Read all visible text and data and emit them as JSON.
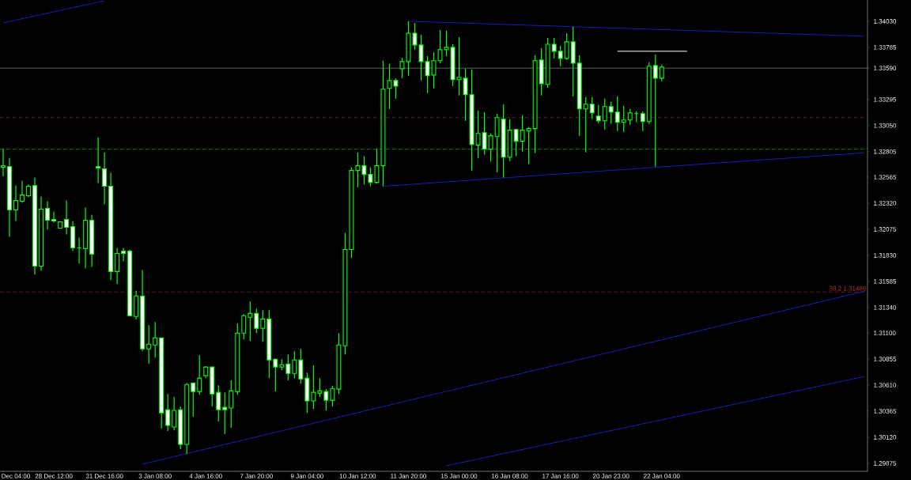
{
  "chart_data": {
    "type": "candlestick",
    "color": "#00ff00",
    "categories": [
      null,
      null,
      "Dec 04:00",
      null,
      null,
      null,
      null,
      null,
      "28 Dec 12:00",
      null,
      null,
      null,
      null,
      null,
      null,
      null,
      "31 Dec 16:00",
      null,
      null,
      null,
      null,
      null,
      null,
      null,
      "3 Jan 08:00",
      null,
      null,
      null,
      null,
      null,
      null,
      null,
      "4 Jan 16:00",
      null,
      null,
      null,
      null,
      null,
      null,
      null,
      "7 Jan 20:00",
      null,
      null,
      null,
      null,
      null,
      null,
      null,
      "9 Jan 04:00",
      null,
      null,
      null,
      null,
      null,
      null,
      null,
      "10 Jan 12:00",
      null,
      null,
      null,
      null,
      null,
      null,
      null,
      "11 Jan 20:00",
      null,
      null,
      null,
      null,
      null,
      null,
      null,
      "15 Jan 00:00",
      null,
      null,
      null,
      null,
      null,
      null,
      null,
      "16 Jan 08:00",
      null,
      null,
      null,
      null,
      null,
      null,
      null,
      "17 Jan 16:00",
      null,
      null,
      null,
      null,
      null,
      null,
      null,
      "20 Jan 23:00",
      null,
      null,
      null,
      null,
      null,
      null,
      null,
      "22 Jan 04:00",
      null,
      null,
      null,
      null,
      null,
      null,
      null,
      null,
      null,
      null,
      null,
      null,
      null,
      null,
      null,
      null,
      null,
      null,
      null,
      null,
      null,
      null,
      null,
      null,
      null,
      null,
      null,
      null,
      null,
      null,
      null,
      null
    ],
    "ohlc": [
      [
        1.32657,
        1.32835,
        1.32575,
        1.32672
      ],
      [
        1.32664,
        1.32746,
        1.32004,
        1.32256
      ],
      [
        1.32256,
        1.32486,
        1.32152,
        1.32345
      ],
      [
        1.32338,
        1.32531,
        1.32323,
        1.32397
      ],
      [
        1.3239,
        1.32494,
        1.32375,
        1.32479
      ],
      [
        1.32486,
        1.32561,
        1.31648,
        1.31729
      ],
      [
        1.31729,
        1.32382,
        1.31685,
        1.32264
      ],
      [
        1.32271,
        1.32338,
        1.32071,
        1.3216
      ],
      [
        1.32167,
        1.32241,
        1.32138,
        1.32152
      ],
      [
        1.32086,
        1.32152,
        1.32086,
        1.32145
      ],
      [
        1.32167,
        1.32345,
        1.32026,
        1.32093
      ],
      [
        1.321,
        1.32152,
        1.3187,
        1.319
      ],
      [
        1.319,
        1.31997,
        1.31752,
        1.319
      ],
      [
        1.31893,
        1.32279,
        1.31707,
        1.3216
      ],
      [
        1.3216,
        1.32212,
        1.31722,
        1.31841
      ],
      [
        1.32664,
        1.32939,
        1.32509,
        1.3265
      ],
      [
        1.32642,
        1.32798,
        1.32308,
        1.32479
      ],
      [
        1.32479,
        1.32605,
        1.31596,
        1.31678
      ],
      [
        1.31678,
        1.319,
        1.31559,
        1.31848
      ],
      [
        1.3187,
        1.319,
        1.31774,
        1.31848
      ],
      [
        1.3187,
        1.31885,
        1.31255,
        1.31262
      ],
      [
        1.31255,
        1.31499,
        1.31225,
        1.31448
      ],
      [
        1.31448,
        1.31692,
        1.30928,
        1.3095
      ],
      [
        1.3095,
        1.31173,
        1.30809,
        1.30995
      ],
      [
        1.30987,
        1.31203,
        1.30869,
        1.31054
      ],
      [
        1.31054,
        1.31054,
        1.30201,
        1.30349
      ],
      [
        1.30379,
        1.30527,
        1.30179,
        1.30231
      ],
      [
        1.30216,
        1.30498,
        1.30186,
        1.30372
      ],
      [
        1.30379,
        1.30409,
        1.30008,
        1.30053
      ],
      [
        1.30053,
        1.30631,
        1.29964,
        1.30616
      ],
      [
        1.30631,
        1.30631,
        1.30312,
        1.3055
      ],
      [
        1.3055,
        1.30891,
        1.3052,
        1.30676
      ],
      [
        1.30698,
        1.30787,
        1.30676,
        1.3078
      ],
      [
        1.3078,
        1.3078,
        1.30409,
        1.30527
      ],
      [
        1.30542,
        1.30609,
        1.30268,
        1.30379
      ],
      [
        1.30401,
        1.30542,
        1.30149,
        1.30379
      ],
      [
        1.30394,
        1.30654,
        1.30208,
        1.30557
      ],
      [
        1.3055,
        1.31188,
        1.3052,
        1.31099
      ],
      [
        1.31099,
        1.31277,
        1.31039,
        1.31262
      ],
      [
        1.31247,
        1.31396,
        1.31025,
        1.31284
      ],
      [
        1.31284,
        1.31329,
        1.31099,
        1.31143
      ],
      [
        1.31143,
        1.31314,
        1.31017,
        1.31232
      ],
      [
        1.31232,
        1.31314,
        1.30676,
        1.30846
      ],
      [
        1.30854,
        1.30861,
        1.3055,
        1.3078
      ],
      [
        1.3078,
        1.30854,
        1.3075,
        1.30802
      ],
      [
        1.30809,
        1.30898,
        1.30654,
        1.3072
      ],
      [
        1.3072,
        1.30928,
        1.30676,
        1.30846
      ],
      [
        1.30846,
        1.3095,
        1.30624,
        1.30668
      ],
      [
        1.30676,
        1.30728,
        1.30349,
        1.30461
      ],
      [
        1.30461,
        1.30795,
        1.30386,
        1.30542
      ],
      [
        1.30535,
        1.30676,
        1.30498,
        1.30557
      ],
      [
        1.3055,
        1.30572,
        1.30372,
        1.30468
      ],
      [
        1.30468,
        1.30602,
        1.30409,
        1.30579
      ],
      [
        1.30572,
        1.31099,
        1.30527,
        1.30987
      ],
      [
        1.3098,
        1.32041,
        1.30898,
        1.31885
      ],
      [
        1.31885,
        1.32657,
        1.31804,
        1.32627
      ],
      [
        1.32627,
        1.32798,
        1.32471,
        1.32672
      ],
      [
        1.32672,
        1.32761,
        1.32494,
        1.3259
      ],
      [
        1.3259,
        1.32657,
        1.32479,
        1.32516
      ],
      [
        1.32516,
        1.32835,
        1.32501,
        1.32672
      ],
      [
        1.32672,
        1.33659,
        1.32479,
        1.33392
      ],
      [
        1.33399,
        1.33629,
        1.33206,
        1.33473
      ],
      [
        1.33473,
        1.33495,
        1.33303,
        1.33421
      ],
      [
        1.33584,
        1.33688,
        1.33495,
        1.33651
      ],
      [
        1.33651,
        1.3403,
        1.33518,
        1.33918
      ],
      [
        1.33918,
        1.34015,
        1.33763,
        1.33807
      ],
      [
        1.33807,
        1.33904,
        1.33473,
        1.33651
      ],
      [
        1.33651,
        1.33703,
        1.33354,
        1.33518
      ],
      [
        1.33525,
        1.3374,
        1.33399,
        1.33659
      ],
      [
        1.33659,
        1.33948,
        1.33636,
        1.33763
      ],
      [
        1.33763,
        1.33941,
        1.33703,
        1.33785
      ],
      [
        1.33785,
        1.33814,
        1.33421,
        1.33481
      ],
      [
        1.33481,
        1.33881,
        1.33332,
        1.33503
      ],
      [
        1.33495,
        1.33584,
        1.33095,
        1.3334
      ],
      [
        1.3334,
        1.33577,
        1.32627,
        1.32872
      ],
      [
        1.32865,
        1.33191,
        1.32746,
        1.32976
      ],
      [
        1.32983,
        1.33176,
        1.32776,
        1.32828
      ],
      [
        1.32828,
        1.32976,
        1.32709,
        1.32954
      ],
      [
        1.32946,
        1.33162,
        1.32612,
        1.33124
      ],
      [
        1.3311,
        1.33251,
        1.32561,
        1.32753
      ],
      [
        1.32753,
        1.3311,
        1.32716,
        1.33006
      ],
      [
        1.33013,
        1.33021,
        1.32761,
        1.32902
      ],
      [
        1.32902,
        1.33147,
        1.32805,
        1.33006
      ],
      [
        1.32998,
        1.33035,
        1.32687,
        1.33021
      ],
      [
        1.33021,
        1.33711,
        1.32791,
        1.33659
      ],
      [
        1.33666,
        1.33777,
        1.33332,
        1.33443
      ],
      [
        1.33436,
        1.33874,
        1.33406,
        1.33814
      ],
      [
        1.33814,
        1.33874,
        1.33681,
        1.33748
      ],
      [
        1.33748,
        1.338,
        1.33607,
        1.33681
      ],
      [
        1.33681,
        1.33918,
        1.33666,
        1.33837
      ],
      [
        1.33837,
        1.33978,
        1.33325,
        1.33636
      ],
      [
        1.33636,
        1.33711,
        1.32954,
        1.33206
      ],
      [
        1.33206,
        1.33317,
        1.32798,
        1.33251
      ],
      [
        1.33251,
        1.33317,
        1.3311,
        1.33169
      ],
      [
        1.33139,
        1.33243,
        1.33072,
        1.33095
      ],
      [
        1.33095,
        1.33303,
        1.33013,
        1.33228
      ],
      [
        1.33228,
        1.33273,
        1.33065,
        1.33176
      ],
      [
        1.33176,
        1.33325,
        1.32998,
        1.3308
      ],
      [
        1.3308,
        1.33236,
        1.32991,
        1.33102
      ],
      [
        1.33102,
        1.33206,
        1.33058,
        1.33169
      ],
      [
        1.33162,
        1.33184,
        1.3308,
        1.33162
      ],
      [
        1.33162,
        1.33184,
        1.32998,
        1.33087
      ],
      [
        1.33087,
        1.33644,
        1.33065,
        1.33607
      ],
      [
        1.33614,
        1.33718,
        1.32664,
        1.33495
      ],
      [
        1.33495,
        1.33622,
        1.33466,
        1.33599
      ],
      null,
      null,
      null,
      null,
      null,
      null,
      null,
      null,
      null,
      null,
      null,
      null,
      null,
      null,
      null,
      null,
      null,
      null,
      null,
      null,
      null,
      null,
      null,
      null,
      null,
      null,
      null,
      null,
      null,
      null,
      null,
      null
    ],
    "series": [
      {
        "type": "line",
        "color": "#1c1cb4",
        "values": [
          null,
          null,
          null,
          null,
          null,
          null,
          null,
          null,
          null,
          null,
          null,
          null,
          null,
          null,
          null,
          null,
          null,
          null,
          null,
          null,
          null,
          null,
          null,
          null,
          null,
          null,
          null,
          null,
          null,
          null,
          null,
          null,
          null,
          null,
          null,
          null,
          null,
          null,
          null,
          null,
          null,
          null,
          null,
          null,
          null,
          null,
          null,
          null,
          null,
          null,
          null,
          null,
          null,
          null,
          null,
          null,
          null,
          null,
          null,
          null,
          null,
          null,
          null,
          null,
          1.3403,
          null,
          null,
          null,
          null,
          null,
          null,
          null,
          null,
          null,
          null,
          null,
          null,
          null,
          null,
          null,
          null,
          null,
          null,
          null,
          null,
          null,
          null,
          null,
          null,
          null,
          null,
          null,
          null,
          null,
          null,
          null,
          null,
          null,
          null,
          null,
          null,
          null,
          null,
          null,
          null,
          null,
          null,
          null,
          null,
          null,
          null,
          null,
          null,
          null,
          null,
          null,
          null,
          null,
          null,
          null,
          null,
          null,
          null,
          null,
          null,
          null,
          null,
          null,
          null,
          null,
          null,
          null,
          null,
          null,
          null,
          null,
          1.33889
        ]
      },
      {
        "type": "line",
        "color": "#1c1cb4",
        "values": [
          null,
          null,
          null,
          null,
          null,
          null,
          null,
          null,
          null,
          null,
          null,
          null,
          null,
          null,
          null,
          null,
          null,
          null,
          null,
          null,
          null,
          null,
          null,
          null,
          null,
          null,
          null,
          null,
          null,
          null,
          null,
          null,
          null,
          null,
          null,
          null,
          null,
          null,
          null,
          null,
          null,
          null,
          null,
          null,
          null,
          null,
          null,
          null,
          null,
          null,
          null,
          null,
          null,
          null,
          null,
          null,
          null,
          null,
          null,
          null,
          1.32479,
          null,
          null,
          null,
          null,
          null,
          null,
          null,
          null,
          null,
          null,
          null,
          null,
          null,
          null,
          null,
          null,
          null,
          null,
          null,
          null,
          null,
          null,
          null,
          null,
          null,
          null,
          null,
          null,
          null,
          null,
          null,
          null,
          null,
          null,
          null,
          null,
          null,
          null,
          null,
          null,
          null,
          null,
          null,
          null,
          null,
          null,
          null,
          null,
          null,
          null,
          null,
          null,
          null,
          null,
          null,
          null,
          null,
          null,
          null,
          null,
          null,
          null,
          null,
          null,
          null,
          null,
          null,
          null,
          null,
          null,
          null,
          null,
          null,
          null,
          null,
          1.32794
        ]
      },
      {
        "type": "line",
        "color": "#1c1cb4",
        "values": [
          null,
          null,
          null,
          null,
          null,
          null,
          null,
          null,
          null,
          null,
          null,
          null,
          null,
          null,
          null,
          null,
          null,
          null,
          null,
          null,
          null,
          null,
          1.29867,
          null,
          null,
          null,
          null,
          null,
          null,
          null,
          null,
          null,
          null,
          null,
          null,
          null,
          null,
          null,
          null,
          null,
          null,
          null,
          null,
          null,
          null,
          null,
          null,
          null,
          null,
          null,
          null,
          null,
          null,
          null,
          null,
          null,
          null,
          null,
          null,
          null,
          null,
          null,
          null,
          null,
          null,
          null,
          null,
          null,
          null,
          null,
          null,
          null,
          null,
          null,
          null,
          null,
          null,
          null,
          null,
          null,
          null,
          null,
          null,
          null,
          null,
          null,
          null,
          null,
          null,
          null,
          null,
          null,
          null,
          null,
          null,
          null,
          null,
          null,
          null,
          null,
          null,
          null,
          null,
          null,
          null,
          null,
          null,
          null,
          null,
          null,
          null,
          null,
          null,
          null,
          null,
          null,
          null,
          null,
          null,
          null,
          null,
          null,
          null,
          null,
          null,
          null,
          null,
          null,
          null,
          null,
          null,
          null,
          null,
          null,
          null,
          null,
          1.31492
        ]
      },
      {
        "type": "line",
        "color": "#1c1cb4",
        "values": [
          null,
          null,
          null,
          null,
          null,
          null,
          null,
          null,
          null,
          null,
          null,
          null,
          null,
          null,
          null,
          null,
          null,
          null,
          null,
          null,
          null,
          null,
          null,
          null,
          null,
          null,
          null,
          null,
          null,
          null,
          null,
          null,
          null,
          null,
          null,
          null,
          null,
          null,
          null,
          null,
          null,
          null,
          null,
          null,
          null,
          null,
          null,
          null,
          null,
          null,
          null,
          null,
          null,
          null,
          null,
          null,
          null,
          null,
          null,
          null,
          null,
          null,
          null,
          null,
          null,
          null,
          null,
          null,
          null,
          null,
          1.29852,
          null,
          null,
          null,
          null,
          null,
          null,
          null,
          null,
          null,
          null,
          null,
          null,
          null,
          null,
          null,
          null,
          null,
          null,
          null,
          null,
          null,
          null,
          null,
          null,
          null,
          null,
          null,
          null,
          null,
          null,
          null,
          null,
          null,
          null,
          null,
          null,
          null,
          null,
          null,
          null,
          null,
          null,
          null,
          null,
          null,
          null,
          null,
          null,
          null,
          null,
          null,
          null,
          null,
          null,
          null,
          null,
          null,
          null,
          null,
          null,
          null,
          null,
          null,
          null,
          null,
          1.30691
        ]
      },
      {
        "type": "line",
        "color": "#1c1cb4",
        "values": [
          1.34015,
          null,
          null,
          null,
          null,
          null,
          null,
          null,
          null,
          null,
          null,
          null,
          null,
          null,
          null,
          null,
          1.34223,
          null,
          null,
          null,
          null,
          null,
          null,
          null,
          null,
          null,
          null,
          null,
          null,
          null,
          null,
          null,
          null,
          null,
          null,
          null,
          null,
          null,
          null,
          null,
          null,
          null,
          null,
          null,
          null,
          null,
          null,
          null,
          null,
          null,
          null,
          null,
          null,
          null,
          null,
          null,
          null,
          null,
          null,
          null,
          null,
          null,
          null,
          null,
          null,
          null,
          null,
          null,
          null,
          null,
          null,
          null,
          null,
          null,
          null,
          null,
          null,
          null,
          null,
          null,
          null,
          null,
          null,
          null,
          null,
          null,
          null,
          null,
          null,
          null,
          null,
          null,
          null,
          null,
          null,
          null,
          null,
          null,
          null,
          null,
          null,
          null,
          null,
          null,
          null,
          null,
          null,
          null,
          null,
          null,
          null,
          null,
          null,
          null,
          null,
          null,
          null,
          null,
          null,
          null,
          null,
          null,
          null,
          null,
          null,
          null,
          null,
          null,
          null,
          null,
          null,
          null,
          null,
          null,
          null,
          null,
          null
        ]
      },
      {
        "type": "line",
        "color": "#ffffff",
        "values": [
          null,
          null,
          null,
          null,
          null,
          null,
          null,
          null,
          null,
          null,
          null,
          null,
          null,
          null,
          null,
          null,
          null,
          null,
          null,
          null,
          null,
          null,
          null,
          null,
          null,
          null,
          null,
          null,
          null,
          null,
          null,
          null,
          null,
          null,
          null,
          null,
          null,
          null,
          null,
          null,
          null,
          null,
          null,
          null,
          null,
          null,
          null,
          null,
          null,
          null,
          null,
          null,
          null,
          null,
          null,
          null,
          null,
          null,
          null,
          null,
          null,
          null,
          null,
          null,
          null,
          null,
          null,
          null,
          null,
          null,
          null,
          null,
          null,
          null,
          null,
          null,
          null,
          null,
          null,
          null,
          null,
          null,
          null,
          null,
          null,
          null,
          null,
          null,
          null,
          null,
          null,
          null,
          null,
          null,
          null,
          null,
          null,
          1.33748,
          null,
          null,
          null,
          null,
          null,
          null,
          null,
          null,
          null,
          null,
          1.33748,
          null,
          null,
          null,
          null,
          null,
          null,
          null,
          null,
          null,
          null,
          null,
          null,
          null,
          null,
          null,
          null,
          null,
          null,
          null,
          null,
          null,
          null,
          null,
          null,
          null,
          null,
          null,
          null
        ]
      }
    ],
    "ylim": [
      1.298,
      1.3423
    ],
    "yticks": [
      {
        "value": 1.3403,
        "label": "1.34030"
      },
      {
        "value": 1.33785,
        "label": "1.33785"
      },
      {
        "value": 1.3359,
        "label": "1.33590"
      },
      {
        "value": 1.33295,
        "label": "1.33295"
      },
      {
        "value": 1.3305,
        "label": "1.33050"
      },
      {
        "value": 1.32805,
        "label": "1.32805"
      },
      {
        "value": 1.32565,
        "label": "1.32565"
      },
      {
        "value": 1.3232,
        "label": "1.32320"
      },
      {
        "value": 1.32075,
        "label": "1.32075"
      },
      {
        "value": 1.3183,
        "label": "1.31830"
      },
      {
        "value": 1.31585,
        "label": "1.31585"
      },
      {
        "value": 1.3134,
        "label": "1.31340"
      },
      {
        "value": 1.311,
        "label": "1.31100"
      },
      {
        "value": 1.30855,
        "label": "1.30855"
      },
      {
        "value": 1.3061,
        "label": "1.30610"
      },
      {
        "value": 1.30365,
        "label": "1.30365"
      },
      {
        "value": 1.3012,
        "label": "1.30120"
      },
      {
        "value": 1.29875,
        "label": "1.29875"
      }
    ],
    "ref_lines": [
      {
        "axis": "y",
        "value": 1.3359,
        "color": "#b4b4b4",
        "line_style": "solid"
      },
      {
        "axis": "y",
        "value": 1.33124,
        "color": "#b03030",
        "line_style": "dashed"
      },
      {
        "axis": "y",
        "value": 1.32828,
        "color": "#00cc00",
        "line_style": "dashed"
      },
      {
        "axis": "y",
        "value": 1.31486,
        "color": "#b03030",
        "line_style": "dashed",
        "label": "38.2  1.31486"
      }
    ]
  }
}
